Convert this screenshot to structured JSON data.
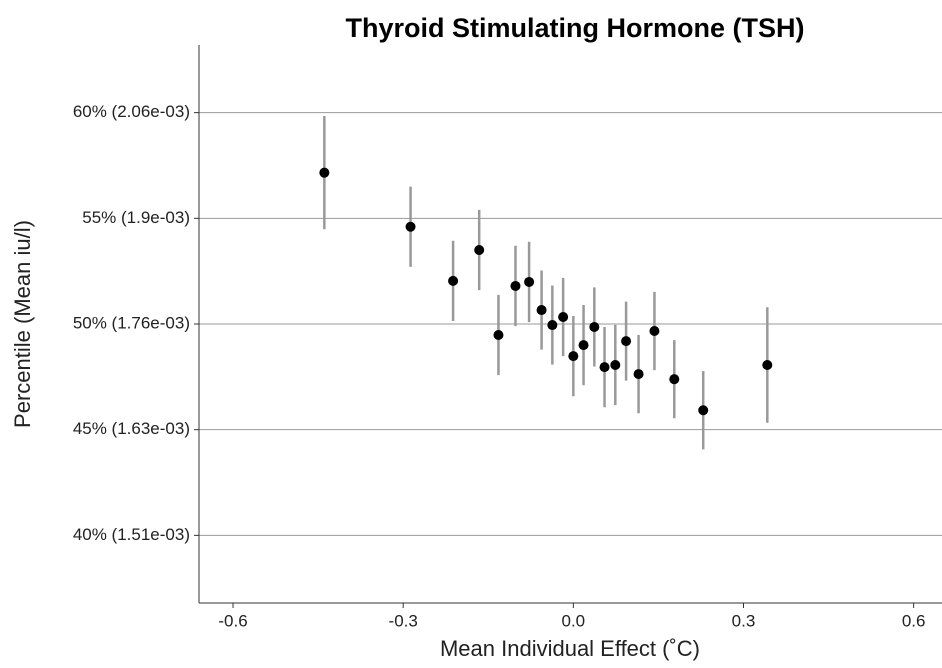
{
  "chart_data": {
    "type": "errorbar_scatter",
    "title": "Thyroid Stimulating Hormone (TSH)",
    "xlabel": "Mean Individual Effect (˚C)",
    "ylabel": "Percentile (Mean iu/l)",
    "xlim": [
      -0.66,
      0.65
    ],
    "ylim": [
      36.8,
      63.2
    ],
    "xticks": [
      -0.6,
      -0.3,
      {
        "value": 0,
        "label": "0.0"
      },
      0.3,
      0.6
    ],
    "yticks": [
      {
        "value": 40,
        "label": "40% (1.51e-03)"
      },
      {
        "value": 45,
        "label": "45% (1.63e-03)"
      },
      {
        "value": 50,
        "label": "50% (1.76e-03)"
      },
      {
        "value": 55,
        "label": "55% (1.9e-03)"
      },
      {
        "value": 60,
        "label": "60% (2.06e-03)"
      }
    ],
    "grid": true,
    "series": [
      {
        "color": "#000000",
        "error_color": "#999999",
        "x": [
          -0.439,
          -0.287,
          -0.212,
          -0.166,
          -0.132,
          -0.102,
          -0.078,
          -0.056,
          -0.037,
          -0.018,
          0.0,
          0.018,
          0.037,
          0.055,
          0.074,
          0.093,
          0.115,
          0.143,
          0.178,
          0.229,
          0.342
        ],
        "values": [
          57.16,
          54.6,
          52.04,
          53.5,
          49.48,
          51.8,
          51.99,
          50.66,
          49.95,
          50.33,
          48.48,
          49.0,
          49.86,
          47.96,
          48.06,
          49.19,
          47.63,
          49.67,
          47.39,
          45.92,
          48.06
        ],
        "errors": [
          2.68,
          1.9,
          1.9,
          1.9,
          1.9,
          1.9,
          1.9,
          1.87,
          1.87,
          1.85,
          1.9,
          1.9,
          1.87,
          1.9,
          1.9,
          1.87,
          1.85,
          1.85,
          1.85,
          1.85,
          2.73
        ]
      }
    ]
  }
}
